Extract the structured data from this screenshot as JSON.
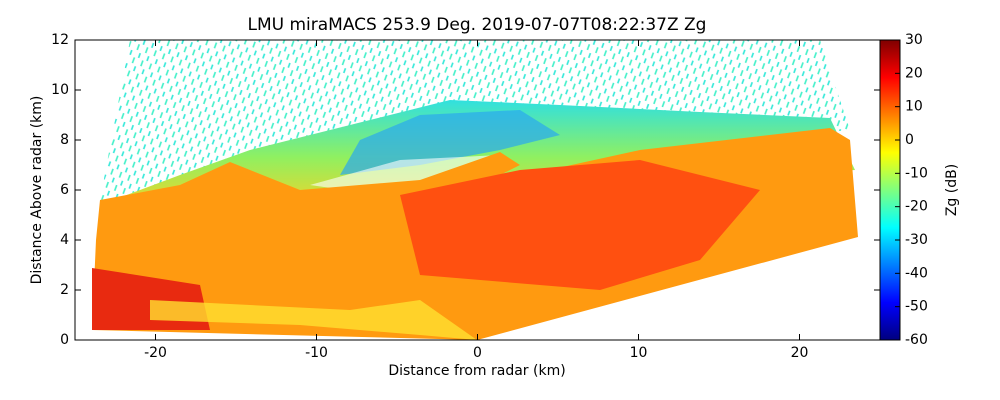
{
  "chart_data": {
    "type": "image",
    "title": "LMU miraMACS 253.9 Deg. 2019-07-07T08:22:37Z  Zg",
    "x_label": "Distance from radar (km)",
    "y_label": "Distance Above radar  (km)",
    "xlim": [
      -25,
      25
    ],
    "xticks": [
      -20,
      -10,
      0,
      10,
      20
    ],
    "ylim": [
      0,
      12
    ],
    "yticks": [
      0,
      2,
      4,
      6,
      8,
      10,
      12
    ],
    "colorbar": {
      "label": "Zg (dB)",
      "colormap": "jet",
      "lim": [
        -60,
        30
      ],
      "ticks": [
        -60,
        -50,
        -40,
        -30,
        -20,
        -10,
        0,
        10,
        20,
        30
      ]
    }
  }
}
